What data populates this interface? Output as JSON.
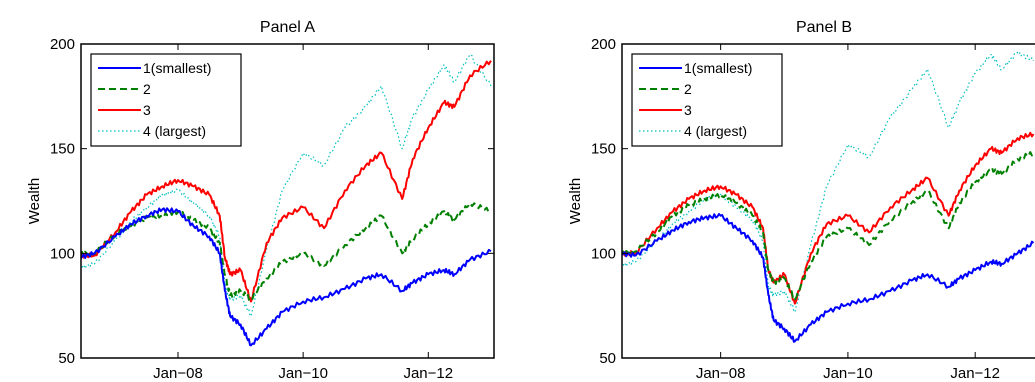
{
  "chart_data": [
    {
      "type": "line",
      "title": "Panel A",
      "xlabel": "",
      "ylabel": "Wealth",
      "ylim": [
        50,
        200
      ],
      "yticks": [
        50,
        100,
        150,
        200
      ],
      "xticks": [
        "Jan−08",
        "Jan−10",
        "Jan−12"
      ],
      "legend_position": "top-left",
      "grid": false,
      "series": [
        {
          "name": "1(smallest)",
          "color": "#0000ff",
          "style": "solid",
          "x": [
            "2006-06",
            "2006-09",
            "2007-01",
            "2007-04",
            "2007-07",
            "2007-10",
            "2008-01",
            "2008-04",
            "2008-07",
            "2008-09",
            "2008-10",
            "2008-11",
            "2009-01",
            "2009-03",
            "2009-06",
            "2009-09",
            "2010-01",
            "2010-05",
            "2010-09",
            "2011-01",
            "2011-04",
            "2011-08",
            "2011-10",
            "2012-01",
            "2012-04",
            "2012-06",
            "2012-09",
            "2013-01"
          ],
          "y": [
            98,
            100,
            108,
            114,
            118,
            121,
            120,
            113,
            108,
            100,
            82,
            70,
            66,
            56,
            64,
            72,
            77,
            79,
            83,
            88,
            90,
            82,
            86,
            90,
            92,
            90,
            97,
            101
          ]
        },
        {
          "name": "2",
          "color": "#008000",
          "style": "dashed",
          "x": [
            "2006-06",
            "2006-09",
            "2007-01",
            "2007-04",
            "2007-07",
            "2007-10",
            "2008-01",
            "2008-04",
            "2008-07",
            "2008-09",
            "2008-10",
            "2008-11",
            "2009-01",
            "2009-03",
            "2009-06",
            "2009-09",
            "2010-01",
            "2010-05",
            "2010-09",
            "2011-01",
            "2011-04",
            "2011-08",
            "2011-10",
            "2012-01",
            "2012-04",
            "2012-06",
            "2012-09",
            "2013-01"
          ],
          "y": [
            100,
            100,
            109,
            113,
            117,
            118,
            120,
            116,
            112,
            105,
            90,
            80,
            82,
            78,
            88,
            96,
            100,
            94,
            104,
            112,
            118,
            100,
            107,
            114,
            120,
            116,
            124,
            120
          ]
        },
        {
          "name": "3",
          "color": "#ff0000",
          "style": "solid",
          "x": [
            "2006-06",
            "2006-09",
            "2007-01",
            "2007-04",
            "2007-07",
            "2007-10",
            "2008-01",
            "2008-04",
            "2008-07",
            "2008-09",
            "2008-10",
            "2008-11",
            "2009-01",
            "2009-03",
            "2009-06",
            "2009-09",
            "2010-01",
            "2010-05",
            "2010-09",
            "2011-01",
            "2011-04",
            "2011-08",
            "2011-10",
            "2012-01",
            "2012-04",
            "2012-06",
            "2012-09",
            "2013-01"
          ],
          "y": [
            99,
            99,
            110,
            120,
            128,
            132,
            135,
            132,
            128,
            118,
            98,
            90,
            92,
            77,
            105,
            117,
            122,
            112,
            130,
            142,
            148,
            126,
            145,
            160,
            172,
            170,
            185,
            192
          ]
        },
        {
          "name": "4 (largest)",
          "color": "#00bfbf",
          "style": "dotted",
          "x": [
            "2006-06",
            "2006-09",
            "2007-01",
            "2007-04",
            "2007-07",
            "2007-10",
            "2008-01",
            "2008-04",
            "2008-07",
            "2008-09",
            "2008-10",
            "2008-11",
            "2009-01",
            "2009-03",
            "2009-06",
            "2009-09",
            "2010-01",
            "2010-05",
            "2010-09",
            "2011-01",
            "2011-04",
            "2011-08",
            "2011-10",
            "2012-01",
            "2012-04",
            "2012-06",
            "2012-09",
            "2013-01"
          ],
          "y": [
            93,
            95,
            106,
            115,
            122,
            128,
            130,
            124,
            118,
            108,
            85,
            78,
            80,
            70,
            102,
            130,
            148,
            142,
            160,
            170,
            180,
            150,
            165,
            178,
            190,
            182,
            195,
            180
          ]
        }
      ]
    },
    {
      "type": "line",
      "title": "Panel B",
      "xlabel": "",
      "ylabel": "Wealth",
      "ylim": [
        50,
        200
      ],
      "yticks": [
        50,
        100,
        150,
        200
      ],
      "xticks": [
        "Jan−08",
        "Jan−10",
        "Jan−12"
      ],
      "legend_position": "top-left",
      "grid": false,
      "series": [
        {
          "name": "1(smallest)",
          "color": "#0000ff",
          "style": "solid",
          "x": [
            "2006-06",
            "2006-09",
            "2007-01",
            "2007-04",
            "2007-07",
            "2007-10",
            "2008-01",
            "2008-04",
            "2008-07",
            "2008-09",
            "2008-10",
            "2008-11",
            "2009-01",
            "2009-03",
            "2009-06",
            "2009-09",
            "2010-01",
            "2010-05",
            "2010-09",
            "2011-01",
            "2011-04",
            "2011-08",
            "2011-10",
            "2012-01",
            "2012-04",
            "2012-06",
            "2012-09",
            "2012-12"
          ],
          "y": [
            100,
            99,
            106,
            111,
            115,
            117,
            118,
            112,
            106,
            98,
            80,
            68,
            64,
            58,
            66,
            72,
            76,
            78,
            82,
            87,
            90,
            84,
            88,
            92,
            96,
            95,
            100,
            105
          ]
        },
        {
          "name": "2",
          "color": "#008000",
          "style": "dashed",
          "x": [
            "2006-06",
            "2006-09",
            "2007-01",
            "2007-04",
            "2007-07",
            "2007-10",
            "2008-01",
            "2008-04",
            "2008-07",
            "2008-09",
            "2008-10",
            "2008-11",
            "2009-01",
            "2009-03",
            "2009-06",
            "2009-09",
            "2010-01",
            "2010-05",
            "2010-09",
            "2011-01",
            "2011-04",
            "2011-08",
            "2011-10",
            "2012-01",
            "2012-04",
            "2012-06",
            "2012-09",
            "2012-12"
          ],
          "y": [
            100,
            101,
            110,
            118,
            123,
            126,
            128,
            124,
            118,
            110,
            92,
            86,
            88,
            78,
            96,
            108,
            112,
            104,
            116,
            124,
            130,
            112,
            124,
            134,
            140,
            138,
            145,
            148
          ]
        },
        {
          "name": "3",
          "color": "#ff0000",
          "style": "solid",
          "x": [
            "2006-06",
            "2006-09",
            "2007-01",
            "2007-04",
            "2007-07",
            "2007-10",
            "2008-01",
            "2008-04",
            "2008-07",
            "2008-09",
            "2008-10",
            "2008-11",
            "2009-01",
            "2009-03",
            "2009-06",
            "2009-09",
            "2010-01",
            "2010-05",
            "2010-09",
            "2011-01",
            "2011-04",
            "2011-08",
            "2011-10",
            "2012-01",
            "2012-04",
            "2012-06",
            "2012-09",
            "2012-12"
          ],
          "y": [
            100,
            100,
            112,
            120,
            126,
            130,
            132,
            128,
            122,
            112,
            92,
            86,
            90,
            76,
            100,
            114,
            118,
            110,
            122,
            130,
            136,
            118,
            130,
            142,
            150,
            148,
            155,
            157
          ]
        },
        {
          "name": "4 (largest)",
          "color": "#00bfbf",
          "style": "dotted",
          "x": [
            "2006-06",
            "2006-09",
            "2007-01",
            "2007-04",
            "2007-07",
            "2007-10",
            "2008-01",
            "2008-04",
            "2008-07",
            "2008-09",
            "2008-10",
            "2008-11",
            "2009-01",
            "2009-03",
            "2009-06",
            "2009-09",
            "2010-01",
            "2010-05",
            "2010-09",
            "2011-01",
            "2011-04",
            "2011-08",
            "2011-10",
            "2012-01",
            "2012-04",
            "2012-06",
            "2012-09",
            "2012-12"
          ],
          "y": [
            94,
            96,
            106,
            114,
            120,
            126,
            128,
            122,
            116,
            106,
            84,
            80,
            82,
            72,
            104,
            132,
            152,
            146,
            165,
            178,
            188,
            160,
            172,
            186,
            195,
            188,
            196,
            192
          ]
        }
      ]
    }
  ]
}
